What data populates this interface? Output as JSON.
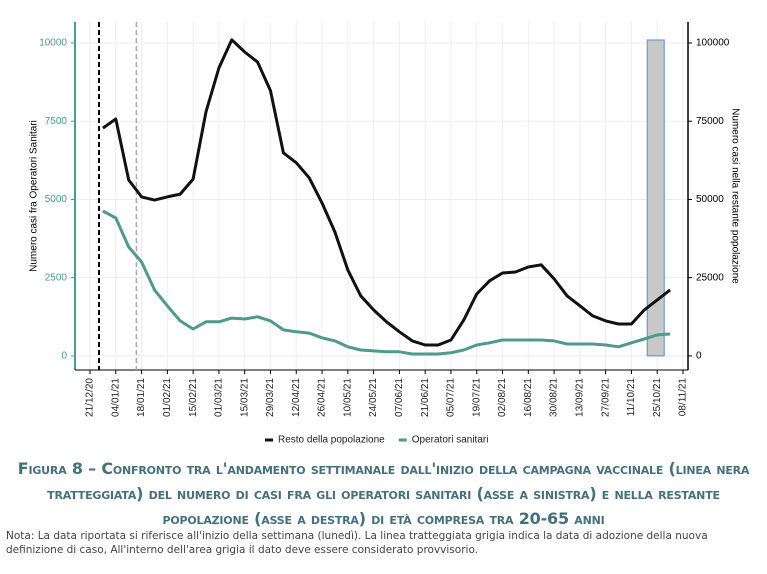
{
  "chart_data": {
    "type": "line",
    "y_label": "Numero casi fra Operatori Sanitari",
    "y2_label": "Numero casi nella restante popolazione",
    "categories": [
      "21/12/20",
      null,
      "04/01/21",
      null,
      "18/01/21",
      null,
      "01/02/21",
      null,
      "15/02/21",
      null,
      "01/03/21",
      null,
      "15/03/21",
      null,
      "29/03/21",
      null,
      "12/04/21",
      null,
      "26/04/21",
      null,
      "10/05/21",
      null,
      "24/05/21",
      null,
      "07/06/21",
      null,
      "21/06/21",
      null,
      "05/07/21",
      null,
      "19/07/21",
      null,
      "02/08/21",
      null,
      "16/08/21",
      null,
      "30/08/21",
      null,
      "13/09/21",
      null,
      "27/09/21",
      null,
      "11/10/21",
      null,
      "25/10/21",
      null,
      "08/11/21"
    ],
    "series": [
      {
        "name": "Resto della popolazione",
        "color": "#111111",
        "axis": "y2",
        "values": [
          null,
          72800,
          75700,
          56200,
          50800,
          49800,
          50800,
          51700,
          56500,
          78000,
          92000,
          101000,
          97100,
          93900,
          84700,
          64900,
          61700,
          56900,
          48900,
          39600,
          27500,
          19200,
          14700,
          10900,
          7700,
          4800,
          3500,
          3500,
          5100,
          11500,
          19800,
          24000,
          26500,
          26800,
          28400,
          29100,
          24600,
          19200,
          16000,
          12800,
          11200,
          10200,
          10200,
          14700,
          17900,
          21100,
          null
        ]
      },
      {
        "name": "Operatori sanitari",
        "color": "#4f9a8b",
        "axis": "y",
        "values": [
          null,
          4630,
          4410,
          3480,
          3000,
          2110,
          1600,
          1120,
          860,
          1090,
          1090,
          1210,
          1180,
          1250,
          1120,
          830,
          770,
          730,
          580,
          480,
          290,
          190,
          160,
          130,
          130,
          60,
          60,
          60,
          100,
          190,
          350,
          420,
          510,
          510,
          510,
          510,
          480,
          380,
          380,
          380,
          350,
          290,
          420,
          540,
          670,
          700,
          null
        ]
      }
    ],
    "ylim": [
      -450,
      10670
    ],
    "yticks": [
      0,
      2500,
      5000,
      7500,
      10000
    ],
    "y2lim": [
      -4500,
      106700
    ],
    "y2ticks": [
      0,
      25000,
      50000,
      75000,
      100000
    ],
    "grid": true,
    "legend": "bottom",
    "caption": "Figura 8 – Confronto tra l'andamento settimanale dall'inizio della campagna vaccinale (linea nera tratteggiata) del numero di casi fra gli operatori sanitari (asse a sinistra) e nella restante popolazione (asse a destra) di età compresa tra 20-65 anni",
    "note": "Nota: La data riportata si riferisce all'inizio della settimana (lunedì). La linea tratteggiata grigia indica la data di adozione della nuova definizione di caso, All'interno dell'area grigia il dato deve essere considerato provvisorio."
  }
}
